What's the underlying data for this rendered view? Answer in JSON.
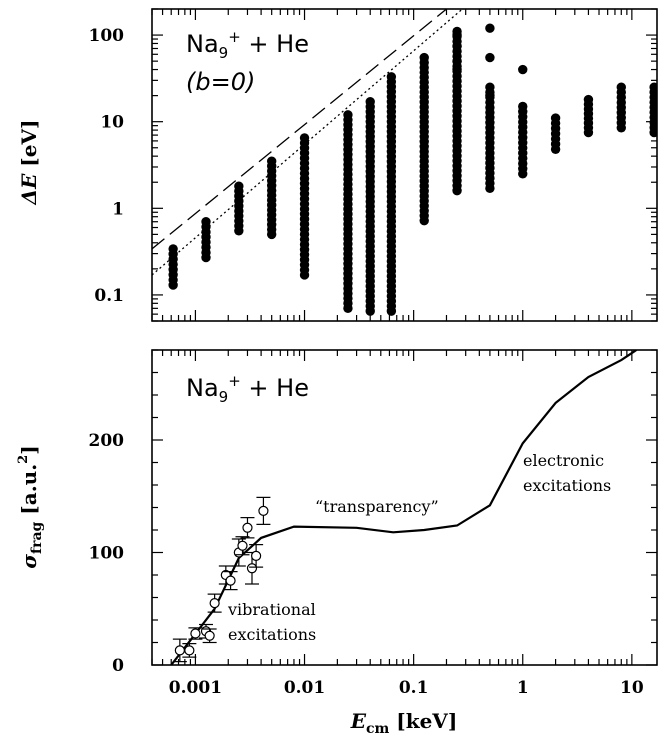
{
  "chart_data": [
    {
      "type": "scatter",
      "title_main": "Na",
      "title_sub": "9",
      "title_sup": "+",
      "title_rest": " + He",
      "subtitle": "(b=0)",
      "ylabel_main": "ΔE",
      "ylabel_unit": " [eV]",
      "xscale": "log",
      "yscale": "log",
      "xlim": [
        0.0004,
        17
      ],
      "ylim": [
        0.05,
        200
      ],
      "ytick_values": [
        0.1,
        1,
        10,
        100
      ],
      "ytick_labels": [
        "0.1",
        "1",
        "10",
        "100"
      ],
      "columns": [
        {
          "x": 0.000625,
          "ymin": 0.13,
          "ymax": 0.34
        },
        {
          "x": 0.00125,
          "ymin": 0.27,
          "ymax": 0.7
        },
        {
          "x": 0.0025,
          "ymin": 0.55,
          "ymax": 1.8
        },
        {
          "x": 0.005,
          "ymin": 0.5,
          "ymax": 3.5
        },
        {
          "x": 0.01,
          "ymin": 0.17,
          "ymax": 6.5
        },
        {
          "x": 0.025,
          "ymin": 0.07,
          "ymax": 12
        },
        {
          "x": 0.04,
          "ymin": 0.065,
          "ymax": 17
        },
        {
          "x": 0.0625,
          "ymin": 0.065,
          "ymax": 33
        },
        {
          "x": 0.125,
          "ymin": 0.72,
          "ymax": 55
        },
        {
          "x": 0.25,
          "ymin": 1.6,
          "ymax": 110
        },
        {
          "x": 0.5,
          "ymin": 1.7,
          "ymax": 25
        },
        {
          "x": 1.0,
          "ymin": 2.5,
          "ymax": 15
        },
        {
          "x": 2.0,
          "ymin": 4.8,
          "ymax": 11
        },
        {
          "x": 4.0,
          "ymin": 7.5,
          "ymax": 18
        },
        {
          "x": 8.0,
          "ymin": 8.5,
          "ymax": 25
        },
        {
          "x": 16.0,
          "ymin": 7.5,
          "ymax": 25
        }
      ],
      "outliers": [
        {
          "x": 0.25,
          "y": 100
        },
        {
          "x": 0.25,
          "y": 75
        },
        {
          "x": 0.25,
          "y": 50
        },
        {
          "x": 0.25,
          "y": 40
        },
        {
          "x": 0.5,
          "y": 120
        },
        {
          "x": 0.5,
          "y": 55
        },
        {
          "x": 0.5,
          "y": 20
        },
        {
          "x": 1.0,
          "y": 40
        }
      ],
      "line_dashed": [
        {
          "x": 0.0004,
          "y": 0.34
        },
        {
          "x": 0.2,
          "y": 200
        }
      ],
      "line_dotted": [
        {
          "x": 0.0004,
          "y": 0.17
        },
        {
          "x": 0.28,
          "y": 200
        }
      ]
    },
    {
      "type": "line",
      "title_main": "Na",
      "title_sub": "9",
      "title_sup": "+",
      "title_rest": " + He",
      "xlabel_main": "E",
      "xlabel_sub": "cm",
      "xlabel_unit": " [keV]",
      "ylabel_main": "σ",
      "ylabel_sub": "frag",
      "ylabel_unit": " [a.u.",
      "ylabel_sup": "2",
      "ylabel_close": "]",
      "xscale": "log",
      "xlim": [
        0.0004,
        17
      ],
      "ylim": [
        0,
        280
      ],
      "ytick_values": [
        0,
        100,
        200
      ],
      "ytick_labels": [
        "0",
        "100",
        "200"
      ],
      "xtick_values": [
        0.001,
        0.01,
        0.1,
        1,
        10
      ],
      "xtick_labels": [
        "0.001",
        "0.01",
        "0.1",
        "1",
        "10"
      ],
      "curve": [
        {
          "x": 0.0006,
          "y": 0
        },
        {
          "x": 0.0009,
          "y": 22
        },
        {
          "x": 0.0015,
          "y": 50
        },
        {
          "x": 0.0025,
          "y": 95
        },
        {
          "x": 0.004,
          "y": 113
        },
        {
          "x": 0.008,
          "y": 123
        },
        {
          "x": 0.03,
          "y": 122
        },
        {
          "x": 0.065,
          "y": 118
        },
        {
          "x": 0.125,
          "y": 120
        },
        {
          "x": 0.25,
          "y": 124
        },
        {
          "x": 0.5,
          "y": 142
        },
        {
          "x": 1.0,
          "y": 197
        },
        {
          "x": 2.0,
          "y": 233
        },
        {
          "x": 4.0,
          "y": 256
        },
        {
          "x": 8.0,
          "y": 271
        },
        {
          "x": 11.0,
          "y": 280
        }
      ],
      "experiment": [
        {
          "x": 0.00072,
          "y": 13,
          "err": 10
        },
        {
          "x": 0.00088,
          "y": 13,
          "err": 6
        },
        {
          "x": 0.001,
          "y": 28,
          "err": 5
        },
        {
          "x": 0.00125,
          "y": 30,
          "err": 6
        },
        {
          "x": 0.00135,
          "y": 26,
          "err": 6
        },
        {
          "x": 0.0015,
          "y": 55,
          "err": 8
        },
        {
          "x": 0.0019,
          "y": 80,
          "err": 8
        },
        {
          "x": 0.0021,
          "y": 75,
          "err": 8
        },
        {
          "x": 0.0025,
          "y": 100,
          "err": 12
        },
        {
          "x": 0.0027,
          "y": 106,
          "err": 8
        },
        {
          "x": 0.003,
          "y": 122,
          "err": 9
        },
        {
          "x": 0.0033,
          "y": 86,
          "err": 14
        },
        {
          "x": 0.0036,
          "y": 97,
          "err": 10
        },
        {
          "x": 0.0042,
          "y": 137,
          "err": 12
        }
      ],
      "annotations": {
        "vibrational_1": "vibrational",
        "vibrational_2": "excitations",
        "transparency": "“transparency”",
        "electronic_1": "electronic",
        "electronic_2": "excitations"
      }
    }
  ]
}
